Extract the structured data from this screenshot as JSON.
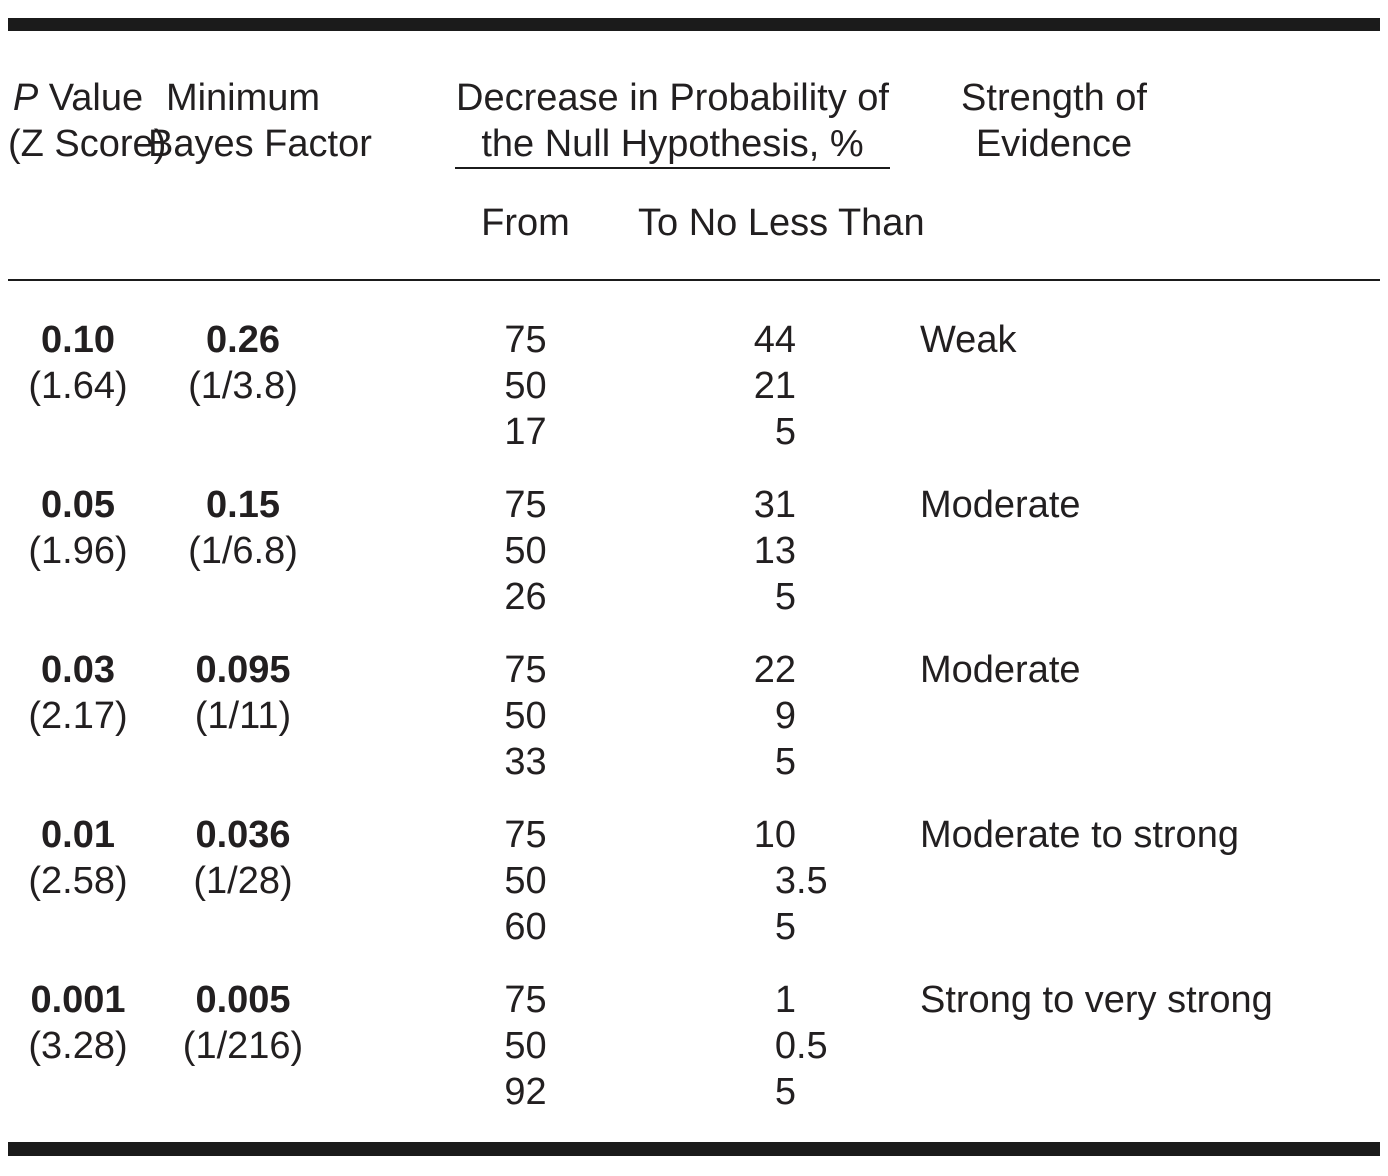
{
  "colors": {
    "text": "#221f20",
    "rule": "#1b1b1b",
    "background": "#ffffff"
  },
  "header": {
    "p_italic": "P",
    "p_rest": " Value",
    "p_line2": "(Z Score)",
    "bayes_line1": "Minimum",
    "bayes_line2": "Bayes Factor",
    "decrease_line1": "Decrease in Probability of",
    "decrease_line2": "the Null Hypothesis, %",
    "from_label": "From",
    "to_label": "To No Less Than",
    "strength_line1": "Strength of",
    "strength_line2": "Evidence"
  },
  "rows": [
    {
      "p_value": "0.10",
      "z_score": "(1.64)",
      "min_bayes_factor": "0.26",
      "bayes_fraction": "(1/3.8)",
      "from": [
        "75",
        "50",
        "17"
      ],
      "to": [
        "44",
        "21",
        "5"
      ],
      "strength": "Weak"
    },
    {
      "p_value": "0.05",
      "z_score": "(1.96)",
      "min_bayes_factor": "0.15",
      "bayes_fraction": "(1/6.8)",
      "from": [
        "75",
        "50",
        "26"
      ],
      "to": [
        "31",
        "13",
        "5"
      ],
      "strength": "Moderate"
    },
    {
      "p_value": "0.03",
      "z_score": "(2.17)",
      "min_bayes_factor": "0.095",
      "bayes_fraction": "(1/11)",
      "from": [
        "75",
        "50",
        "33"
      ],
      "to": [
        "22",
        "9",
        "5"
      ],
      "strength": "Moderate"
    },
    {
      "p_value": "0.01",
      "z_score": "(2.58)",
      "min_bayes_factor": "0.036",
      "bayes_fraction": "(1/28)",
      "from": [
        "75",
        "50",
        "60"
      ],
      "to": [
        "10",
        "3.5",
        "5"
      ],
      "strength": "Moderate to strong"
    },
    {
      "p_value": "0.001",
      "z_score": "(3.28)",
      "min_bayes_factor": "0.005",
      "bayes_fraction": "(1/216)",
      "from": [
        "75",
        "50",
        "92"
      ],
      "to": [
        "1",
        "0.5",
        "5"
      ],
      "strength": "Strong to very strong"
    }
  ]
}
